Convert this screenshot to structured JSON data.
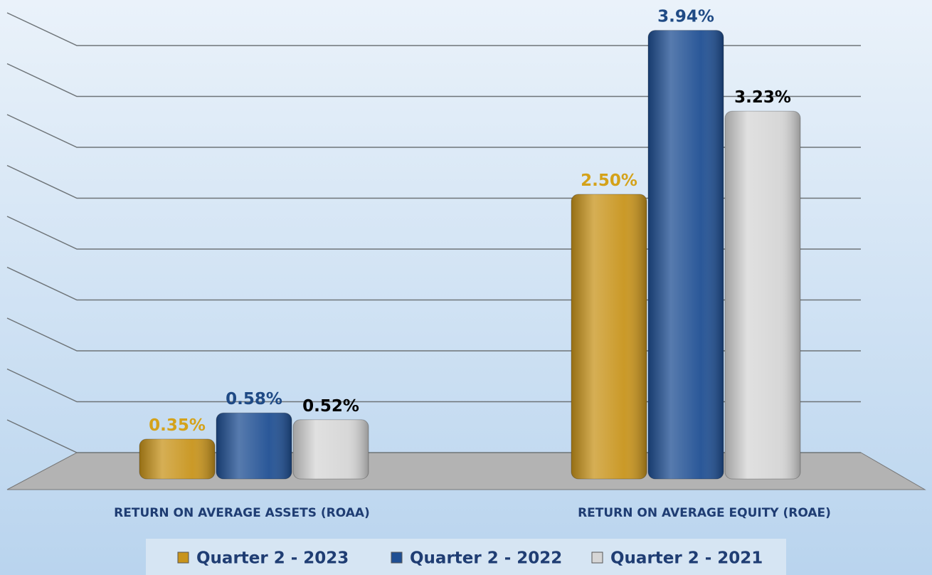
{
  "chart_data": {
    "type": "bar",
    "categories": [
      "RETURN ON AVERAGE ASSETS (ROAA)",
      "RETURN ON AVERAGE EQUITY (ROAE)"
    ],
    "series": [
      {
        "name": "Quarter 2 - 2023",
        "color": "#c8941c",
        "label_color": "#d4a21a",
        "values": [
          0.35,
          2.5
        ],
        "value_labels": [
          "0.35%",
          "2.50%"
        ]
      },
      {
        "name": "Quarter 2 - 2022",
        "color": "#1f4f93",
        "label_color": "#1f4a85",
        "values": [
          0.58,
          3.94
        ],
        "value_labels": [
          "0.58%",
          "3.94%"
        ]
      },
      {
        "name": "Quarter 2 - 2021",
        "color": "#d6d6d6",
        "label_color": "#000000",
        "values": [
          0.52,
          3.23
        ],
        "value_labels": [
          "0.52%",
          "3.23%"
        ]
      }
    ],
    "ylim": [
      0,
      4
    ],
    "yticks": [
      0,
      0.5,
      1,
      1.5,
      2,
      2.5,
      3,
      3.5,
      4
    ],
    "grid": true
  }
}
